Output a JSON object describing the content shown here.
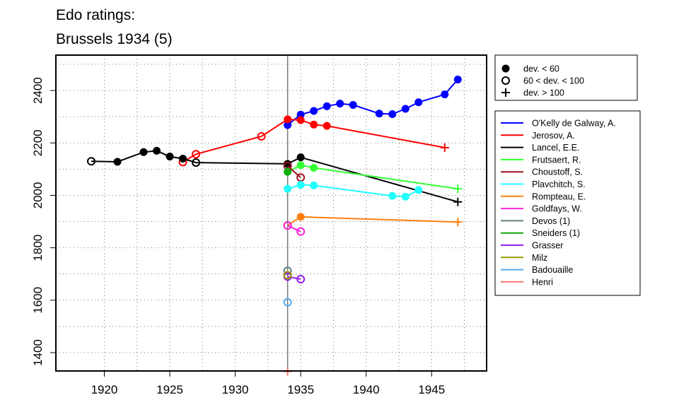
{
  "chart_data": {
    "type": "line",
    "title": [
      "Edo ratings:",
      "Brussels 1934 (5)"
    ],
    "xlabel": "",
    "ylabel": "",
    "xlim": [
      1916.3,
      1949.2
    ],
    "ylim": [
      1330,
      2535
    ],
    "x_ticks": [
      1920,
      1925,
      1930,
      1935,
      1940,
      1945
    ],
    "y_ticks": [
      1400,
      1600,
      1800,
      2000,
      2200,
      2400
    ],
    "grid": true,
    "vertical_marker_x": 1934,
    "marker_legend": [
      {
        "shape": "dot",
        "label": "dev. < 60"
      },
      {
        "shape": "circle",
        "label": "60 < dev. < 100"
      },
      {
        "shape": "plus",
        "label": "dev. > 100"
      }
    ],
    "legend_position": "right",
    "series": [
      {
        "name": "O'Kelly de Galway, A.",
        "color": "#0000ff",
        "points": [
          [
            1934,
            2268,
            "dot"
          ],
          [
            1935,
            2308,
            "dot"
          ],
          [
            1936,
            2322,
            "dot"
          ],
          [
            1937,
            2340,
            "dot"
          ],
          [
            1938,
            2350,
            "dot"
          ],
          [
            1939,
            2345,
            "dot"
          ],
          [
            1941,
            2312,
            "dot"
          ],
          [
            1942,
            2310,
            "dot"
          ],
          [
            1943,
            2330,
            "dot"
          ],
          [
            1944,
            2355,
            "dot"
          ],
          [
            1946,
            2385,
            "dot"
          ],
          [
            1947,
            2442,
            "dot"
          ]
        ]
      },
      {
        "name": "Jerosov, A.",
        "color": "#ff0000",
        "points": [
          [
            1926,
            2127,
            "circle"
          ],
          [
            1927,
            2157,
            "circle"
          ],
          [
            1932,
            2225,
            "circle"
          ],
          [
            1934,
            2290,
            "dot"
          ],
          [
            1935,
            2287,
            "dot"
          ],
          [
            1936,
            2270,
            "dot"
          ],
          [
            1937,
            2265,
            "dot"
          ],
          [
            1946,
            2182,
            "plus"
          ]
        ]
      },
      {
        "name": "Lancel, E.E.",
        "color": "#000000",
        "points": [
          [
            1919,
            2130,
            "circle"
          ],
          [
            1921,
            2128,
            "dot"
          ],
          [
            1923,
            2165,
            "dot"
          ],
          [
            1924,
            2170,
            "dot"
          ],
          [
            1925,
            2148,
            "dot"
          ],
          [
            1926,
            2140,
            "dot"
          ],
          [
            1927,
            2125,
            "circle"
          ],
          [
            1934,
            2120,
            "dot"
          ],
          [
            1935,
            2145,
            "dot"
          ],
          [
            1947,
            1975,
            "plus"
          ]
        ]
      },
      {
        "name": "Frutsaert, R.",
        "color": "#33ff33",
        "points": [
          [
            1934,
            2090,
            "dot"
          ],
          [
            1935,
            2115,
            "dot"
          ],
          [
            1936,
            2105,
            "dot"
          ],
          [
            1947,
            2025,
            "plus"
          ]
        ]
      },
      {
        "name": "Choustoff, S.",
        "color": "#a01020",
        "points": [
          [
            1934,
            2112,
            "circle"
          ],
          [
            1935,
            2068,
            "circle"
          ]
        ]
      },
      {
        "name": "Plavchitch, S.",
        "color": "#22ffff",
        "points": [
          [
            1934,
            2025,
            "dot"
          ],
          [
            1935,
            2040,
            "dot"
          ],
          [
            1936,
            2038,
            "dot"
          ],
          [
            1942,
            1998,
            "dot"
          ],
          [
            1943,
            1995,
            "dot"
          ],
          [
            1944,
            2020,
            "dot"
          ]
        ]
      },
      {
        "name": "Rompteau, E.",
        "color": "#ff7f0e",
        "points": [
          [
            1934,
            1885,
            "circle"
          ],
          [
            1935,
            1918,
            "dot"
          ],
          [
            1947,
            1898,
            "plus"
          ]
        ]
      },
      {
        "name": "Goldfays, W.",
        "color": "#ff22dd",
        "points": [
          [
            1934,
            1885,
            "circle"
          ],
          [
            1935,
            1862,
            "circle"
          ]
        ]
      },
      {
        "name": "Devos (1)",
        "color": "#5f7f7f",
        "points": [
          [
            1934,
            1712,
            "circle"
          ]
        ]
      },
      {
        "name": "Sneiders (1)",
        "color": "#11aa11",
        "points": [
          [
            1934,
            2090,
            "dot"
          ]
        ]
      },
      {
        "name": "Grasser",
        "color": "#9922ee",
        "points": [
          [
            1934,
            1690,
            "circle"
          ],
          [
            1935,
            1680,
            "circle"
          ]
        ]
      },
      {
        "name": "Milz",
        "color": "#999900",
        "points": [
          [
            1934,
            1695,
            "circle"
          ]
        ]
      },
      {
        "name": "Badouaille",
        "color": "#55aaee",
        "points": [
          [
            1934,
            1592,
            "circle"
          ]
        ]
      },
      {
        "name": "Henri",
        "color": "#ff7777",
        "points": [
          [
            1934,
            1328,
            "plus"
          ]
        ]
      }
    ]
  }
}
